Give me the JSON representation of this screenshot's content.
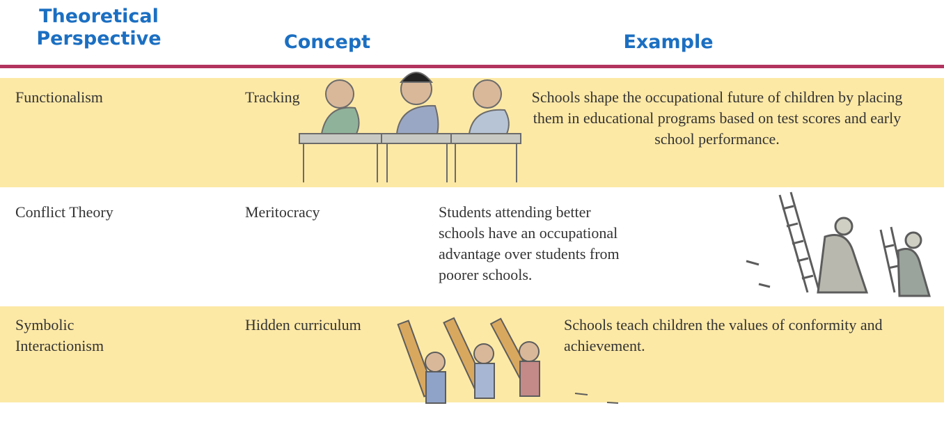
{
  "header": {
    "columns": [
      "Theoretical Perspective",
      "Concept",
      "Example"
    ]
  },
  "table": {
    "rows": [
      [
        "Functionalism",
        "Tracking",
        "Schools shape the occupational future of children by placing them in educational programs based on test scores and early school performance."
      ],
      [
        "Conflict Theory",
        "Meritocracy",
        "Students attending better schools have an occupational advantage over students from poorer schools."
      ],
      [
        "Symbolic Interactionism",
        "Hidden curriculum",
        "Schools teach children the values of conformity and achievement."
      ]
    ]
  }
}
